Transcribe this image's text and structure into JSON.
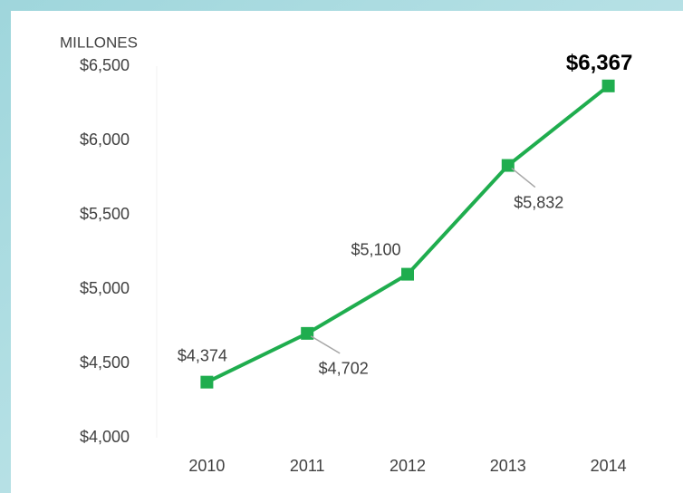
{
  "chart_data": {
    "type": "line",
    "y_label": "MILLONES",
    "categories": [
      "2010",
      "2011",
      "2012",
      "2013",
      "2014"
    ],
    "series": [
      {
        "name": "Millones",
        "color": "#1fad4e",
        "values": [
          4374,
          4702,
          5100,
          5832,
          6367
        ],
        "value_labels": [
          "$4,374",
          "$4,702",
          "$5,100",
          "$5,832",
          "$6,367"
        ]
      }
    ],
    "ylim": [
      4000,
      6500
    ],
    "yticks": [
      {
        "value": 4000,
        "label": "$4,000"
      },
      {
        "value": 4500,
        "label": "$4,500"
      },
      {
        "value": 5000,
        "label": "$5,000"
      },
      {
        "value": 5500,
        "label": "$5,500"
      },
      {
        "value": 6000,
        "label": "$6,000"
      },
      {
        "value": 6500,
        "label": "$6,500"
      }
    ],
    "grid": false
  }
}
